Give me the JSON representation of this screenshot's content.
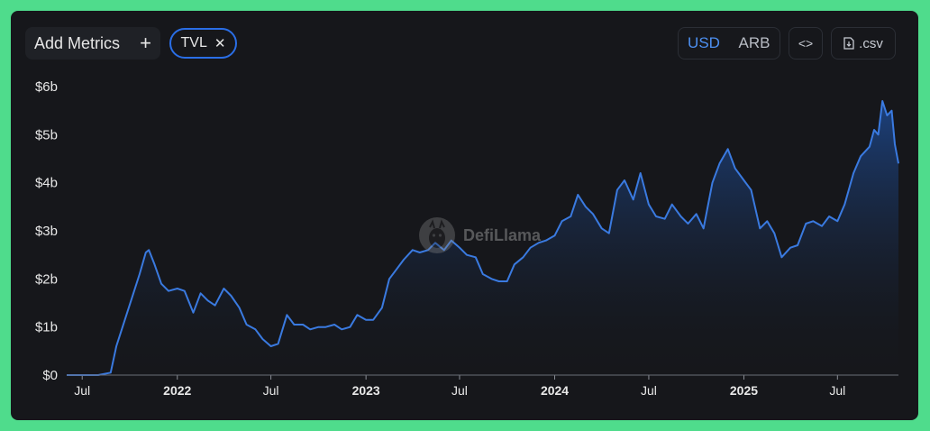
{
  "toolbar": {
    "add_metrics_label": "Add Metrics",
    "add_metrics_icon": "+",
    "metric_chip_label": "TVL",
    "metric_chip_remove": "✕",
    "currency_options": [
      "USD",
      "ARB"
    ],
    "currency_selected": "USD",
    "embed_label": "<>",
    "csv_label": ".csv"
  },
  "watermark": {
    "text": "DefiLlama"
  },
  "colors": {
    "line": "#3a7ae0",
    "area_top": "#1e4f9e",
    "area_bottom": "#16171b",
    "accent": "#2a6ee6",
    "card_bg": "#16171b",
    "page_bg": "#4fdc8c"
  },
  "chart_data": {
    "type": "area",
    "title": "",
    "xlabel": "",
    "ylabel": "",
    "y_unit": "billions USD",
    "ylim": [
      0,
      6
    ],
    "xlim": [
      "2021-06-01",
      "2025-10-27"
    ],
    "y_ticks": [
      {
        "value": 0,
        "label": "$0"
      },
      {
        "value": 1,
        "label": "$1b"
      },
      {
        "value": 2,
        "label": "$2b"
      },
      {
        "value": 3,
        "label": "$3b"
      },
      {
        "value": 4,
        "label": "$4b"
      },
      {
        "value": 5,
        "label": "$5b"
      },
      {
        "value": 6,
        "label": "$6b"
      }
    ],
    "x_ticks": [
      {
        "date": "2021-07-01",
        "label": "Jul",
        "bold": false
      },
      {
        "date": "2022-01-01",
        "label": "2022",
        "bold": true
      },
      {
        "date": "2022-07-01",
        "label": "Jul",
        "bold": false
      },
      {
        "date": "2023-01-01",
        "label": "2023",
        "bold": true
      },
      {
        "date": "2023-07-01",
        "label": "Jul",
        "bold": false
      },
      {
        "date": "2024-01-01",
        "label": "2024",
        "bold": true
      },
      {
        "date": "2024-07-01",
        "label": "Jul",
        "bold": false
      },
      {
        "date": "2025-01-01",
        "label": "2025",
        "bold": true
      },
      {
        "date": "2025-07-01",
        "label": "Jul",
        "bold": false
      }
    ],
    "grid": false,
    "series": [
      {
        "points": [
          [
            "2021-06-01",
            0.0
          ],
          [
            "2021-07-01",
            0.0
          ],
          [
            "2021-08-01",
            0.0
          ],
          [
            "2021-08-25",
            0.05
          ],
          [
            "2021-09-05",
            0.6
          ],
          [
            "2021-09-20",
            1.1
          ],
          [
            "2021-10-05",
            1.6
          ],
          [
            "2021-10-20",
            2.1
          ],
          [
            "2021-11-01",
            2.55
          ],
          [
            "2021-11-07",
            2.6
          ],
          [
            "2021-11-18",
            2.3
          ],
          [
            "2021-12-01",
            1.9
          ],
          [
            "2021-12-15",
            1.75
          ],
          [
            "2022-01-01",
            1.8
          ],
          [
            "2022-01-15",
            1.75
          ],
          [
            "2022-02-01",
            1.3
          ],
          [
            "2022-02-15",
            1.7
          ],
          [
            "2022-03-01",
            1.55
          ],
          [
            "2022-03-15",
            1.45
          ],
          [
            "2022-04-01",
            1.8
          ],
          [
            "2022-04-15",
            1.65
          ],
          [
            "2022-05-01",
            1.4
          ],
          [
            "2022-05-15",
            1.05
          ],
          [
            "2022-06-01",
            0.95
          ],
          [
            "2022-06-15",
            0.75
          ],
          [
            "2022-07-01",
            0.6
          ],
          [
            "2022-07-15",
            0.65
          ],
          [
            "2022-08-01",
            1.25
          ],
          [
            "2022-08-15",
            1.05
          ],
          [
            "2022-09-01",
            1.05
          ],
          [
            "2022-09-15",
            0.95
          ],
          [
            "2022-10-01",
            1.0
          ],
          [
            "2022-10-15",
            1.0
          ],
          [
            "2022-11-01",
            1.05
          ],
          [
            "2022-11-15",
            0.95
          ],
          [
            "2022-12-01",
            1.0
          ],
          [
            "2022-12-15",
            1.25
          ],
          [
            "2023-01-01",
            1.15
          ],
          [
            "2023-01-15",
            1.15
          ],
          [
            "2023-02-01",
            1.4
          ],
          [
            "2023-02-15",
            2.0
          ],
          [
            "2023-03-01",
            2.2
          ],
          [
            "2023-03-15",
            2.4
          ],
          [
            "2023-04-01",
            2.6
          ],
          [
            "2023-04-15",
            2.55
          ],
          [
            "2023-05-01",
            2.6
          ],
          [
            "2023-05-15",
            2.75
          ],
          [
            "2023-06-01",
            2.6
          ],
          [
            "2023-06-15",
            2.8
          ],
          [
            "2023-07-01",
            2.65
          ],
          [
            "2023-07-15",
            2.5
          ],
          [
            "2023-08-01",
            2.45
          ],
          [
            "2023-08-15",
            2.1
          ],
          [
            "2023-09-01",
            2.0
          ],
          [
            "2023-09-15",
            1.95
          ],
          [
            "2023-10-01",
            1.95
          ],
          [
            "2023-10-15",
            2.3
          ],
          [
            "2023-11-01",
            2.45
          ],
          [
            "2023-11-15",
            2.65
          ],
          [
            "2023-12-01",
            2.75
          ],
          [
            "2023-12-15",
            2.8
          ],
          [
            "2024-01-01",
            2.9
          ],
          [
            "2024-01-15",
            3.2
          ],
          [
            "2024-02-01",
            3.3
          ],
          [
            "2024-02-15",
            3.75
          ],
          [
            "2024-03-01",
            3.5
          ],
          [
            "2024-03-15",
            3.35
          ],
          [
            "2024-04-01",
            3.05
          ],
          [
            "2024-04-15",
            2.95
          ],
          [
            "2024-05-01",
            3.85
          ],
          [
            "2024-05-15",
            4.05
          ],
          [
            "2024-06-01",
            3.65
          ],
          [
            "2024-06-15",
            4.2
          ],
          [
            "2024-07-01",
            3.55
          ],
          [
            "2024-07-15",
            3.3
          ],
          [
            "2024-08-01",
            3.25
          ],
          [
            "2024-08-15",
            3.55
          ],
          [
            "2024-09-01",
            3.3
          ],
          [
            "2024-09-15",
            3.15
          ],
          [
            "2024-10-01",
            3.35
          ],
          [
            "2024-10-15",
            3.05
          ],
          [
            "2024-11-01",
            4.0
          ],
          [
            "2024-11-15",
            4.4
          ],
          [
            "2024-12-01",
            4.7
          ],
          [
            "2024-12-15",
            4.3
          ],
          [
            "2025-01-01",
            4.05
          ],
          [
            "2025-01-15",
            3.85
          ],
          [
            "2025-02-01",
            3.05
          ],
          [
            "2025-02-15",
            3.2
          ],
          [
            "2025-03-01",
            2.95
          ],
          [
            "2025-03-15",
            2.45
          ],
          [
            "2025-04-01",
            2.65
          ],
          [
            "2025-04-15",
            2.7
          ],
          [
            "2025-05-01",
            3.15
          ],
          [
            "2025-05-15",
            3.2
          ],
          [
            "2025-06-01",
            3.1
          ],
          [
            "2025-06-15",
            3.3
          ],
          [
            "2025-07-01",
            3.2
          ],
          [
            "2025-07-15",
            3.55
          ],
          [
            "2025-08-01",
            4.2
          ],
          [
            "2025-08-15",
            4.55
          ],
          [
            "2025-09-01",
            4.75
          ],
          [
            "2025-09-10",
            5.1
          ],
          [
            "2025-09-18",
            5.0
          ],
          [
            "2025-09-26",
            5.7
          ],
          [
            "2025-10-05",
            5.4
          ],
          [
            "2025-10-14",
            5.5
          ],
          [
            "2025-10-20",
            4.8
          ],
          [
            "2025-10-27",
            4.4
          ]
        ]
      }
    ]
  }
}
